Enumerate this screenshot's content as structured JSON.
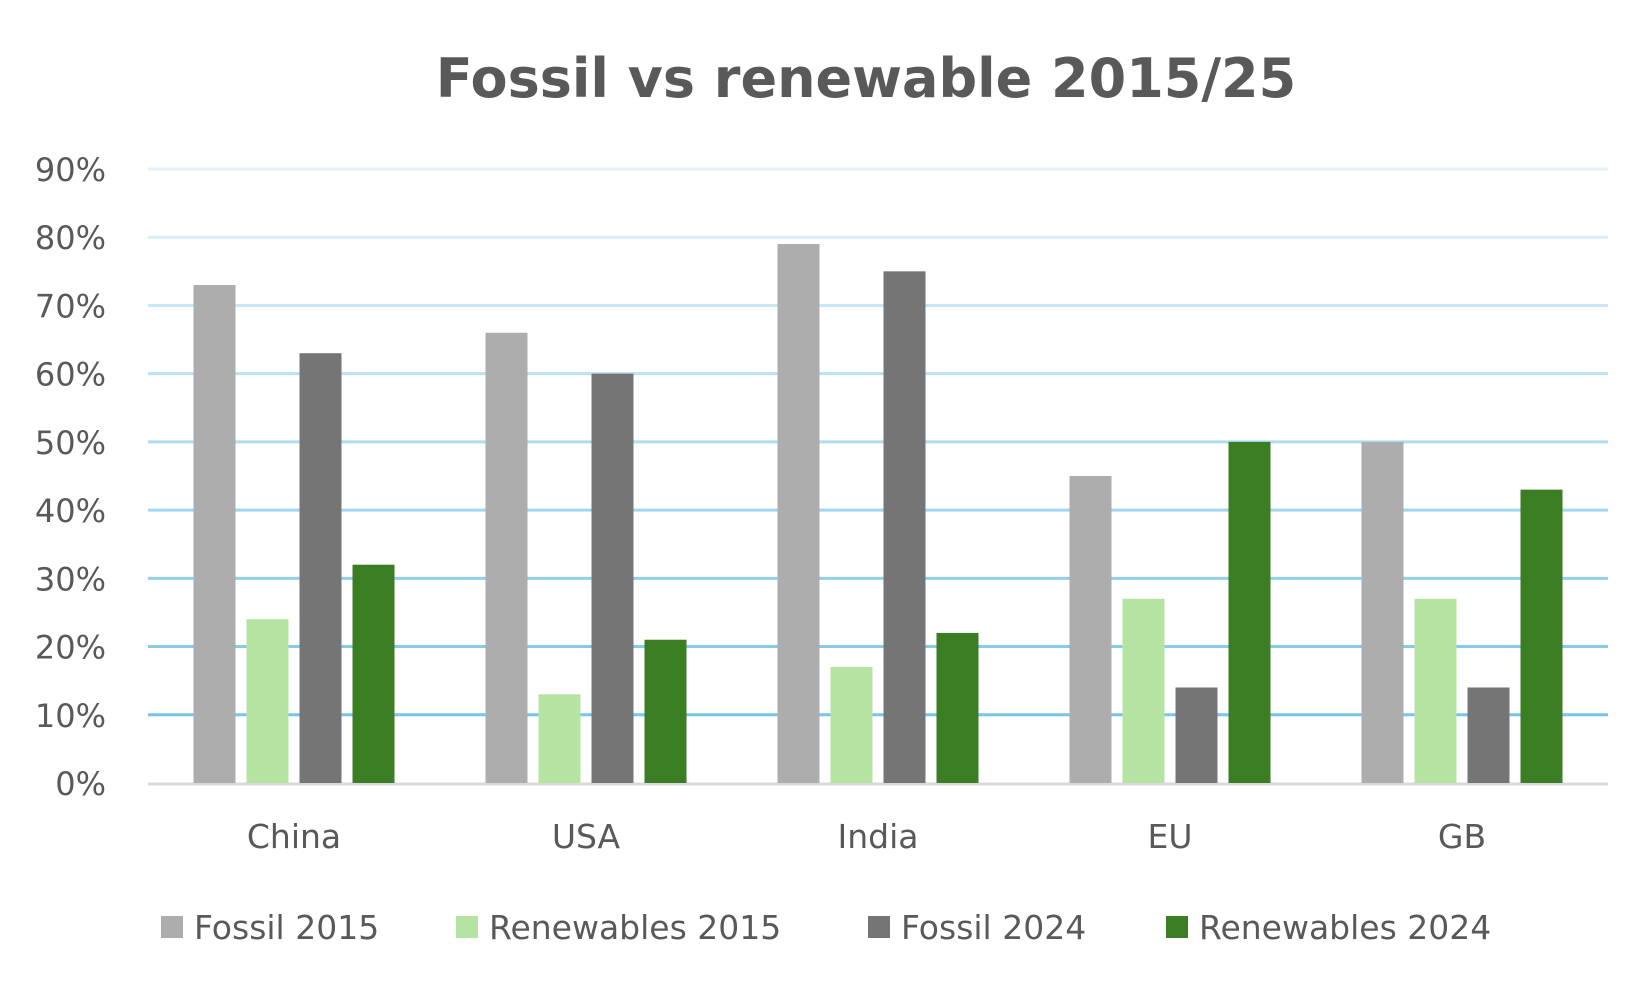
{
  "chart_data": {
    "type": "bar",
    "title": "Fossil vs renewable 2015/25",
    "xlabel": "",
    "ylabel": "",
    "categories": [
      "China",
      "USA",
      "India",
      "EU",
      "GB"
    ],
    "series": [
      {
        "name": "Fossil 2015",
        "color": "#adadad",
        "values": [
          73,
          66,
          79,
          45,
          50
        ]
      },
      {
        "name": "Renewables 2015",
        "color": "#b5e4a2",
        "values": [
          24,
          13,
          17,
          27,
          27
        ]
      },
      {
        "name": "Fossil 2024",
        "color": "#757575",
        "values": [
          63,
          60,
          75,
          14,
          14
        ]
      },
      {
        "name": "Renewables 2024",
        "color": "#3b7d23",
        "values": [
          32,
          21,
          22,
          50,
          43
        ]
      }
    ],
    "ylim": [
      0,
      90
    ],
    "yticks": [
      "0%",
      "10%",
      "20%",
      "30%",
      "40%",
      "50%",
      "60%",
      "70%",
      "80%",
      "90%"
    ],
    "grid": true,
    "gridline_color": "#79c4ea",
    "legend_position": "bottom"
  }
}
